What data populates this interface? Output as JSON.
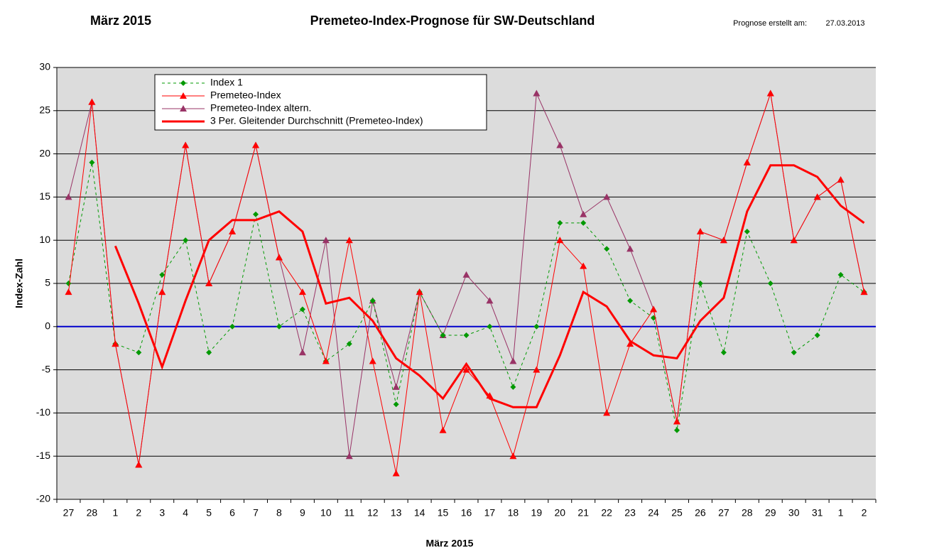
{
  "chart_data": {
    "type": "line",
    "title": "Premeteo-Index-Prognose für SW-Deutschland",
    "subtitle": "März 2015",
    "created_label": "Prognose erstellt am:",
    "created_date": "27.03.2013",
    "x_label": "März 2015",
    "y_label": "Index-Zahl",
    "categories": [
      "27",
      "28",
      "1",
      "2",
      "3",
      "4",
      "5",
      "6",
      "7",
      "8",
      "9",
      "10",
      "11",
      "12",
      "13",
      "14",
      "15",
      "16",
      "17",
      "18",
      "19",
      "20",
      "21",
      "22",
      "23",
      "24",
      "25",
      "26",
      "27",
      "28",
      "29",
      "30",
      "31",
      "1",
      "2"
    ],
    "ylim": [
      -20,
      30
    ],
    "yticks": [
      -20,
      -15,
      -10,
      -5,
      0,
      5,
      10,
      15,
      20,
      25,
      30
    ],
    "grid": true,
    "zero_line_color": "#0000cc",
    "legend": "top-left",
    "series": [
      {
        "name": "Index 1",
        "color": "#009900",
        "style": "dotted",
        "marker": "diamond",
        "width": 1,
        "values": [
          5,
          19,
          -2,
          -3,
          6,
          10,
          -3,
          0,
          13,
          0,
          2,
          -4,
          -2,
          3,
          -9,
          4,
          -1,
          -1,
          0,
          -7,
          0,
          12,
          12,
          9,
          3,
          1,
          -12,
          5,
          -3,
          11,
          5,
          -3,
          -1,
          6,
          4
        ]
      },
      {
        "name": "Premeteo-Index",
        "color": "#ff0000",
        "style": "solid",
        "marker": "triangle",
        "width": 1,
        "values": [
          4,
          26,
          -2,
          -16,
          4,
          21,
          5,
          11,
          21,
          8,
          4,
          -4,
          10,
          -4,
          -17,
          4,
          -12,
          -5,
          -8,
          -15,
          -5,
          10,
          7,
          -10,
          -2,
          2,
          -11,
          11,
          10,
          19,
          27,
          10,
          15,
          17,
          4
        ]
      },
      {
        "name": "Premeteo-Index altern.",
        "color": "#993366",
        "style": "solid",
        "marker": "triangle",
        "width": 1,
        "values": [
          15,
          26,
          -2,
          -16,
          4,
          21,
          5,
          11,
          21,
          8,
          -3,
          10,
          -15,
          3,
          -7,
          4,
          -1,
          6,
          3,
          -4,
          27,
          21,
          13,
          15,
          9,
          2,
          -11,
          11,
          10,
          19,
          27,
          10,
          15,
          17,
          4
        ]
      },
      {
        "name": "3 Per. Gleitender Durchschnitt (Premeteo-Index)",
        "color": "#ff0000",
        "style": "solid",
        "marker": "none",
        "width": 3,
        "values": [
          null,
          null,
          9.33,
          2.67,
          -4.67,
          3,
          10,
          12.33,
          12.33,
          13.33,
          11,
          2.67,
          3.33,
          0.67,
          -3.67,
          -5.67,
          -8.33,
          -4.33,
          -8.33,
          -9.33,
          -9.33,
          -3.33,
          4,
          2.33,
          -1.67,
          -3.33,
          -3.67,
          0.67,
          3.33,
          13.33,
          18.67,
          18.67,
          17.33,
          14,
          12
        ]
      }
    ]
  }
}
